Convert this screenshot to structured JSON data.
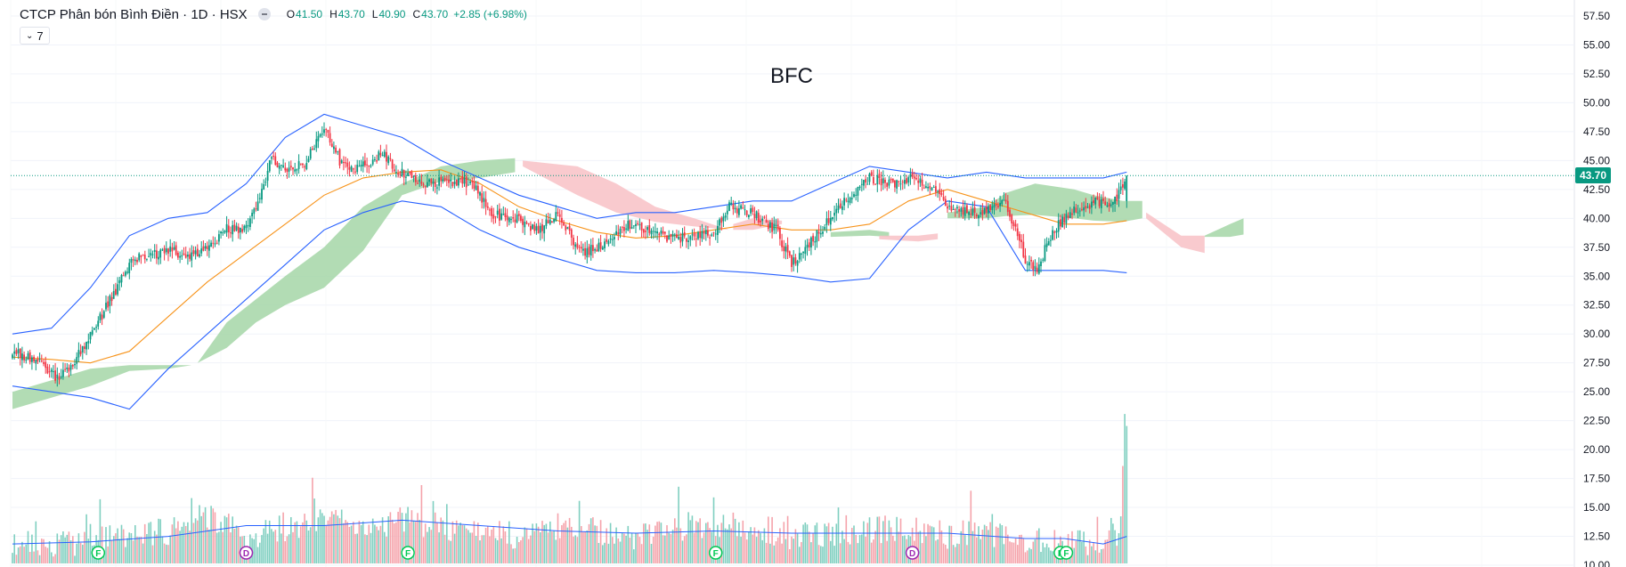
{
  "header": {
    "title": "CTCP Phân bón Bình Điền · 1D · HSX",
    "open_label": "O",
    "open": "41.50",
    "high_label": "H",
    "high": "43.70",
    "low_label": "L",
    "low": "40.90",
    "close_label": "C",
    "close": "43.70",
    "change": "+2.85 (+6.98%)"
  },
  "indicators_toggle": {
    "label": "7"
  },
  "watermark": "BFC",
  "last_price_label": "43.70",
  "colors": {
    "up": "#089981",
    "down": "#f23645",
    "upVol": "#7fcfc0",
    "downVol": "#f5a3ab",
    "bollinger": "#2962ff",
    "ma": "#f7931a",
    "cloudUp": "#a5d6a7",
    "cloudDown": "#f8c1c6"
  },
  "chart_data": {
    "type": "candlestick",
    "symbol": "BFC",
    "price_axis": {
      "min": 10,
      "max": 57.5,
      "ticks": [
        "57.50",
        "55.00",
        "52.50",
        "50.00",
        "47.50",
        "45.00",
        "42.50",
        "40.00",
        "37.50",
        "35.00",
        "32.50",
        "30.00",
        "27.50",
        "25.00",
        "22.50",
        "20.00",
        "17.50",
        "15.00",
        "12.50",
        "10.00"
      ]
    },
    "price_path": [
      [
        0,
        28.5
      ],
      [
        12,
        27.8
      ],
      [
        22,
        26.2
      ],
      [
        30,
        27.2
      ],
      [
        42,
        30.5
      ],
      [
        52,
        33.5
      ],
      [
        62,
        36.5
      ],
      [
        80,
        37.2
      ],
      [
        90,
        36.8
      ],
      [
        100,
        37.2
      ],
      [
        110,
        39.2
      ],
      [
        118,
        38.8
      ],
      [
        127,
        41.5
      ],
      [
        133,
        45.2
      ],
      [
        142,
        44.0
      ],
      [
        150,
        44.8
      ],
      [
        160,
        48.0
      ],
      [
        168,
        45.0
      ],
      [
        176,
        44.2
      ],
      [
        184,
        44.8
      ],
      [
        190,
        45.8
      ],
      [
        198,
        44.0
      ],
      [
        210,
        43.0
      ],
      [
        224,
        43.2
      ],
      [
        236,
        43.0
      ],
      [
        246,
        40.3
      ],
      [
        258,
        40.1
      ],
      [
        270,
        39.0
      ],
      [
        280,
        40.3
      ],
      [
        292,
        37.0
      ],
      [
        306,
        38.0
      ],
      [
        316,
        39.6
      ],
      [
        330,
        38.8
      ],
      [
        340,
        38.2
      ],
      [
        352,
        38.4
      ],
      [
        360,
        38.8
      ],
      [
        368,
        41.0
      ],
      [
        380,
        40.4
      ],
      [
        392,
        39.0
      ],
      [
        400,
        36.0
      ],
      [
        410,
        38.0
      ],
      [
        420,
        40.0
      ],
      [
        430,
        42.0
      ],
      [
        440,
        43.5
      ],
      [
        452,
        43.0
      ],
      [
        462,
        43.5
      ],
      [
        472,
        42.5
      ],
      [
        482,
        40.8
      ],
      [
        492,
        40.5
      ],
      [
        502,
        40.8
      ],
      [
        510,
        41.5
      ],
      [
        520,
        36.5
      ],
      [
        526,
        35.5
      ],
      [
        534,
        39.0
      ],
      [
        544,
        40.5
      ],
      [
        556,
        41.5
      ],
      [
        562,
        41.0
      ],
      [
        566,
        41.5
      ],
      [
        572,
        43.7
      ]
    ],
    "last_index": 572,
    "last_bar": {
      "open": 41.5,
      "high": 43.7,
      "low": 40.9,
      "close": 43.7
    },
    "bollinger_upper": [
      [
        0,
        30
      ],
      [
        20,
        30.5
      ],
      [
        40,
        34
      ],
      [
        60,
        38.5
      ],
      [
        80,
        40
      ],
      [
        100,
        40.5
      ],
      [
        120,
        43
      ],
      [
        140,
        47
      ],
      [
        160,
        49
      ],
      [
        180,
        48
      ],
      [
        200,
        47
      ],
      [
        220,
        45
      ],
      [
        240,
        43.5
      ],
      [
        260,
        42
      ],
      [
        280,
        41
      ],
      [
        300,
        40
      ],
      [
        320,
        40.5
      ],
      [
        340,
        40.5
      ],
      [
        360,
        41
      ],
      [
        380,
        41.5
      ],
      [
        400,
        41.5
      ],
      [
        420,
        43
      ],
      [
        440,
        44.5
      ],
      [
        460,
        44
      ],
      [
        480,
        43.5
      ],
      [
        500,
        44
      ],
      [
        520,
        43.5
      ],
      [
        540,
        43.5
      ],
      [
        560,
        43.5
      ],
      [
        572,
        44
      ]
    ],
    "bollinger_lower": [
      [
        0,
        25.5
      ],
      [
        20,
        25
      ],
      [
        40,
        24.5
      ],
      [
        60,
        23.5
      ],
      [
        80,
        27
      ],
      [
        100,
        30
      ],
      [
        120,
        33
      ],
      [
        140,
        36
      ],
      [
        160,
        39
      ],
      [
        180,
        40.5
      ],
      [
        200,
        41.5
      ],
      [
        220,
        41
      ],
      [
        240,
        39
      ],
      [
        260,
        37.5
      ],
      [
        280,
        36.5
      ],
      [
        300,
        35.5
      ],
      [
        320,
        35.3
      ],
      [
        340,
        35.3
      ],
      [
        360,
        35.5
      ],
      [
        380,
        35.3
      ],
      [
        400,
        35
      ],
      [
        420,
        34.5
      ],
      [
        440,
        34.8
      ],
      [
        460,
        39
      ],
      [
        480,
        41.5
      ],
      [
        500,
        41
      ],
      [
        520,
        35.5
      ],
      [
        540,
        35.5
      ],
      [
        560,
        35.5
      ],
      [
        572,
        35.3
      ]
    ],
    "ma": [
      [
        0,
        28
      ],
      [
        20,
        27.8
      ],
      [
        40,
        27.5
      ],
      [
        60,
        28.5
      ],
      [
        80,
        31.5
      ],
      [
        100,
        34.5
      ],
      [
        120,
        37
      ],
      [
        140,
        39.5
      ],
      [
        160,
        42
      ],
      [
        180,
        43.5
      ],
      [
        200,
        44
      ],
      [
        220,
        44.2
      ],
      [
        240,
        43
      ],
      [
        260,
        41
      ],
      [
        280,
        39.8
      ],
      [
        300,
        38.8
      ],
      [
        320,
        38.3
      ],
      [
        340,
        38.5
      ],
      [
        360,
        39
      ],
      [
        380,
        39.5
      ],
      [
        400,
        39
      ],
      [
        420,
        39
      ],
      [
        440,
        39.5
      ],
      [
        460,
        41.5
      ],
      [
        480,
        42.5
      ],
      [
        500,
        41.5
      ],
      [
        520,
        40.5
      ],
      [
        540,
        39.5
      ],
      [
        560,
        39.5
      ],
      [
        572,
        39.8
      ]
    ],
    "cloud": [
      {
        "color": "up",
        "upper": [
          [
            0,
            25
          ],
          [
            20,
            26
          ],
          [
            40,
            27
          ],
          [
            60,
            27.3
          ],
          [
            80,
            27.3
          ],
          [
            92,
            27.3
          ]
        ],
        "lower": [
          [
            0,
            23.5
          ],
          [
            20,
            24.5
          ],
          [
            40,
            25.5
          ],
          [
            60,
            26.8
          ],
          [
            80,
            27
          ],
          [
            92,
            27.3
          ]
        ]
      },
      {
        "color": "up",
        "upper": [
          [
            95,
            27.5
          ],
          [
            110,
            31
          ],
          [
            125,
            33
          ],
          [
            140,
            35
          ],
          [
            160,
            37.5
          ],
          [
            180,
            41
          ],
          [
            200,
            43
          ],
          [
            220,
            44.5
          ],
          [
            240,
            45
          ],
          [
            258,
            45.2
          ]
        ],
        "lower": [
          [
            95,
            27.5
          ],
          [
            110,
            28.8
          ],
          [
            125,
            31
          ],
          [
            140,
            32.5
          ],
          [
            160,
            34
          ],
          [
            180,
            37.2
          ],
          [
            200,
            42
          ],
          [
            220,
            43.2
          ],
          [
            240,
            43.5
          ],
          [
            258,
            44
          ]
        ]
      },
      {
        "color": "down",
        "upper": [
          [
            262,
            45
          ],
          [
            290,
            44.5
          ],
          [
            310,
            43
          ],
          [
            330,
            41
          ],
          [
            350,
            40
          ],
          [
            368,
            39
          ]
        ],
        "lower": [
          [
            262,
            44.5
          ],
          [
            290,
            42
          ],
          [
            310,
            40.5
          ],
          [
            330,
            39.7
          ],
          [
            350,
            39.3
          ],
          [
            368,
            39
          ]
        ]
      },
      {
        "color": "down",
        "upper": [
          [
            370,
            39.5
          ],
          [
            380,
            40
          ],
          [
            395,
            39.8
          ]
        ],
        "lower": [
          [
            370,
            39
          ],
          [
            380,
            39
          ],
          [
            395,
            39.5
          ]
        ]
      },
      {
        "color": "up",
        "upper": [
          [
            420,
            38.8
          ],
          [
            440,
            39
          ],
          [
            450,
            38.8
          ]
        ],
        "lower": [
          [
            420,
            38.4
          ],
          [
            440,
            38.5
          ],
          [
            450,
            38.4
          ]
        ]
      },
      {
        "color": "down",
        "upper": [
          [
            445,
            38.5
          ],
          [
            465,
            38.5
          ],
          [
            475,
            38.7
          ]
        ],
        "lower": [
          [
            445,
            38.2
          ],
          [
            465,
            38
          ],
          [
            475,
            38.2
          ]
        ]
      },
      {
        "color": "up",
        "upper": [
          [
            480,
            40.5
          ],
          [
            500,
            41
          ],
          [
            510,
            42.2
          ],
          [
            525,
            43
          ],
          [
            545,
            42.5
          ],
          [
            555,
            42
          ],
          [
            570,
            41.5
          ],
          [
            580,
            41.5
          ]
        ],
        "lower": [
          [
            480,
            40
          ],
          [
            500,
            40
          ],
          [
            510,
            40.2
          ],
          [
            525,
            40.3
          ],
          [
            545,
            40
          ],
          [
            555,
            39.8
          ],
          [
            570,
            39.7
          ],
          [
            580,
            40
          ]
        ]
      },
      {
        "color": "down",
        "upper": [
          [
            582,
            40.5
          ],
          [
            600,
            38.5
          ],
          [
            612,
            38.5
          ]
        ],
        "lower": [
          [
            582,
            40
          ],
          [
            600,
            37.5
          ],
          [
            612,
            37
          ]
        ]
      },
      {
        "color": "up",
        "upper": [
          [
            612,
            38.5
          ],
          [
            625,
            39.5
          ],
          [
            632,
            40
          ]
        ],
        "lower": [
          [
            612,
            38.4
          ],
          [
            625,
            38.4
          ],
          [
            632,
            38.6
          ]
        ]
      }
    ],
    "volume_axis": {
      "min": 9,
      "max": 22
    },
    "volume_path": [
      [
        0,
        10.8
      ],
      [
        30,
        10.9
      ],
      [
        60,
        11.5
      ],
      [
        80,
        12
      ],
      [
        100,
        13.5
      ],
      [
        120,
        11.5
      ],
      [
        140,
        12
      ],
      [
        160,
        13.5
      ],
      [
        180,
        12
      ],
      [
        200,
        13
      ],
      [
        220,
        12.5
      ],
      [
        240,
        12
      ],
      [
        260,
        11.5
      ],
      [
        280,
        12.5
      ],
      [
        300,
        12
      ],
      [
        320,
        11.5
      ],
      [
        340,
        12
      ],
      [
        360,
        12.5
      ],
      [
        380,
        12.5
      ],
      [
        400,
        11.5
      ],
      [
        420,
        11.5
      ],
      [
        440,
        12
      ],
      [
        460,
        12.5
      ],
      [
        480,
        11.5
      ],
      [
        500,
        12
      ],
      [
        520,
        11
      ],
      [
        540,
        11
      ],
      [
        560,
        11
      ],
      [
        566,
        13
      ],
      [
        568,
        10.8
      ],
      [
        571,
        21.7
      ],
      [
        572,
        21.7
      ]
    ],
    "volume_ma": [
      [
        0,
        10.8
      ],
      [
        40,
        11
      ],
      [
        80,
        11.5
      ],
      [
        120,
        12.5
      ],
      [
        160,
        12.5
      ],
      [
        200,
        13
      ],
      [
        240,
        12.5
      ],
      [
        280,
        12
      ],
      [
        320,
        11.8
      ],
      [
        360,
        12
      ],
      [
        400,
        11.8
      ],
      [
        440,
        11.8
      ],
      [
        480,
        11.8
      ],
      [
        520,
        11.3
      ],
      [
        540,
        11.3
      ],
      [
        560,
        10.8
      ],
      [
        572,
        11.5
      ]
    ],
    "events": [
      {
        "letter": "F",
        "index": 44,
        "color": "#00c853"
      },
      {
        "letter": "D",
        "index": 120,
        "color": "#9c27b0"
      },
      {
        "letter": "F",
        "index": 203,
        "color": "#00c853"
      },
      {
        "letter": "F",
        "index": 361,
        "color": "#00c853"
      },
      {
        "letter": "D",
        "index": 462,
        "color": "#9c27b0"
      },
      {
        "letter": "F",
        "index": 538,
        "color": "#00c853"
      },
      {
        "letter": "F",
        "index": 541,
        "color": "#00c853"
      }
    ]
  }
}
